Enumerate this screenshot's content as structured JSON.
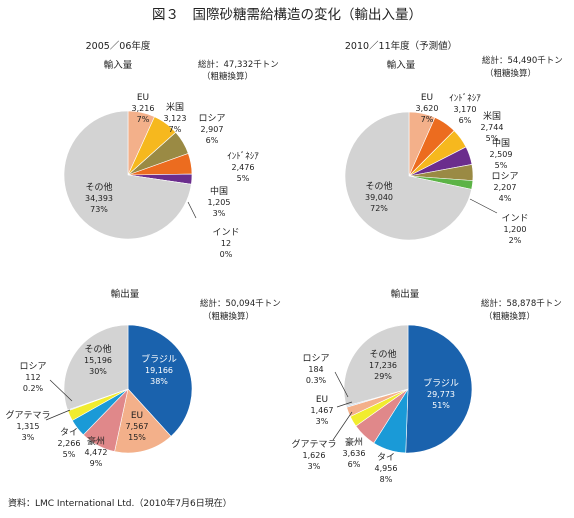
{
  "figure_title": "図３　国際砂糖需給構造の変化（輸出入量）",
  "source_note": "資料：LMC International Ltd.（2010年7月6日現在）",
  "colors": {
    "EU": "#f3b08a",
    "米国": "#f6b81e",
    "ロシア": "#9a8a44",
    "インドネシア": "#ec6c1f",
    "中国": "#6b2d8d",
    "インド": "#5cb346",
    "その他": "#d3d3d3",
    "ブラジル": "#1a62ad",
    "タイ": "#1a9ad7",
    "豪州": "#e0888a",
    "グアテマラ": "#f1ec2e",
    "ロシア_export": "#a6c7e6"
  },
  "chart_data": [
    {
      "type": "pie",
      "period": "2005／06年度",
      "title": "輸入量",
      "total_label": "総計：47,332千トン",
      "total_sub": "（粗糖換算）",
      "slices": [
        {
          "name": "EU",
          "value": 3216,
          "value_label": "3,216",
          "pct": "7%"
        },
        {
          "name": "米国",
          "value": 3123,
          "value_label": "3,123",
          "pct": "7%"
        },
        {
          "name": "ロシア",
          "value": 2907,
          "value_label": "2,907",
          "pct": "6%"
        },
        {
          "name": "ｲﾝﾄﾞﾈｼｱ",
          "value": 2476,
          "value_label": "2,476",
          "pct": "5%"
        },
        {
          "name": "中国",
          "value": 1205,
          "value_label": "1,205",
          "pct": "3%"
        },
        {
          "name": "インド",
          "value": 12,
          "value_label": "12",
          "pct": "0%"
        },
        {
          "name": "その他",
          "value": 34393,
          "value_label": "34,393",
          "pct": "73%"
        }
      ]
    },
    {
      "type": "pie",
      "period": "2010／11年度（予測値）",
      "title": "輸入量",
      "total_label": "総計：54,490千トン",
      "total_sub": "（粗糖換算）",
      "slices": [
        {
          "name": "EU",
          "value": 3620,
          "value_label": "3,620",
          "pct": "7%"
        },
        {
          "name": "ｲﾝﾄﾞﾈｼｱ",
          "value": 3170,
          "value_label": "3,170",
          "pct": "6%"
        },
        {
          "name": "米国",
          "value": 2744,
          "value_label": "2,744",
          "pct": "5%"
        },
        {
          "name": "中国",
          "value": 2509,
          "value_label": "2,509",
          "pct": "5%"
        },
        {
          "name": "ロシア",
          "value": 2207,
          "value_label": "2,207",
          "pct": "4%"
        },
        {
          "name": "インド",
          "value": 1200,
          "value_label": "1,200",
          "pct": "2%"
        },
        {
          "name": "その他",
          "value": 39040,
          "value_label": "39,040",
          "pct": "72%"
        }
      ]
    },
    {
      "type": "pie",
      "period": "",
      "title": "輸出量",
      "total_label": "総計：50,094千トン",
      "total_sub": "（粗糖換算）",
      "slices": [
        {
          "name": "ブラジル",
          "value": 19166,
          "value_label": "19,166",
          "pct": "38%"
        },
        {
          "name": "EU",
          "value": 7567,
          "value_label": "7,567",
          "pct": "15%"
        },
        {
          "name": "豪州",
          "value": 4472,
          "value_label": "4,472",
          "pct": "9%"
        },
        {
          "name": "タイ",
          "value": 2266,
          "value_label": "2,266",
          "pct": "5%"
        },
        {
          "name": "グアテマラ",
          "value": 1315,
          "value_label": "1,315",
          "pct": "3%"
        },
        {
          "name": "ロシア",
          "value": 112,
          "value_label": "112",
          "pct": "0.2%"
        },
        {
          "name": "その他",
          "value": 15196,
          "value_label": "15,196",
          "pct": "30%"
        }
      ]
    },
    {
      "type": "pie",
      "period": "",
      "title": "輸出量",
      "total_label": "総計：58,878千トン",
      "total_sub": "（粗糖換算）",
      "slices": [
        {
          "name": "ブラジル",
          "value": 29773,
          "value_label": "29,773",
          "pct": "51%"
        },
        {
          "name": "タイ",
          "value": 4956,
          "value_label": "4,956",
          "pct": "8%"
        },
        {
          "name": "豪州",
          "value": 3636,
          "value_label": "3,636",
          "pct": "6%"
        },
        {
          "name": "グアテマラ",
          "value": 1626,
          "value_label": "1,626",
          "pct": "3%"
        },
        {
          "name": "EU",
          "value": 1467,
          "value_label": "1,467",
          "pct": "3%"
        },
        {
          "name": "ロシア",
          "value": 184,
          "value_label": "184",
          "pct": "0.3%"
        },
        {
          "name": "その他",
          "value": 17236,
          "value_label": "17,236",
          "pct": "29%"
        }
      ]
    }
  ]
}
